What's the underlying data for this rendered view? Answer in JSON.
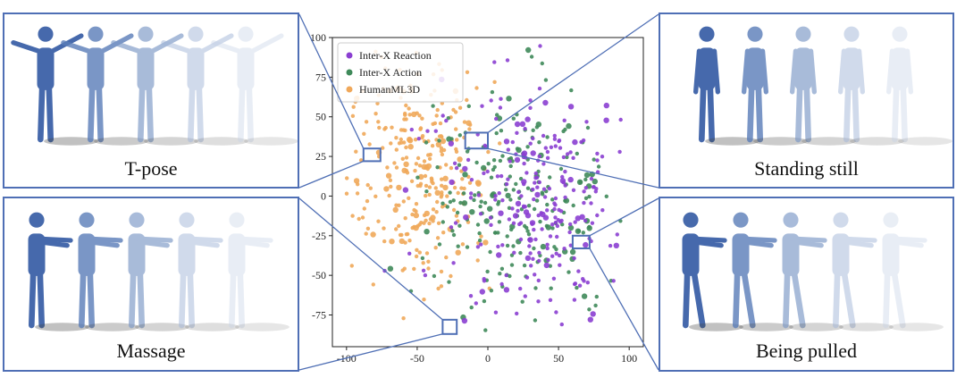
{
  "panels": {
    "tpose": {
      "caption": "T-pose"
    },
    "standing": {
      "caption": "Standing still"
    },
    "massage": {
      "caption": "Massage"
    },
    "pulled": {
      "caption": "Being pulled"
    }
  },
  "chart_data": {
    "type": "scatter",
    "title": "",
    "xlabel": "",
    "ylabel": "",
    "xlim": [
      -110,
      110
    ],
    "ylim": [
      -95,
      100
    ],
    "xticks": [
      -100,
      -50,
      0,
      50,
      100
    ],
    "yticks": [
      -75,
      -50,
      -25,
      0,
      25,
      50,
      75,
      100
    ],
    "grid": false,
    "legend_position": "top-left",
    "series": [
      {
        "name": "Inter-X Reaction",
        "color": "#8b3fd1",
        "center": [
          35,
          -5
        ],
        "spread": [
          32,
          38
        ],
        "count": 260
      },
      {
        "name": "Inter-X Action",
        "color": "#3f8a5a",
        "center": [
          20,
          -10
        ],
        "spread": [
          35,
          40
        ],
        "count": 230
      },
      {
        "name": "HumanML3D",
        "color": "#f0a85a",
        "center": [
          -50,
          15
        ],
        "spread": [
          25,
          35
        ],
        "count": 300
      }
    ],
    "highlight_regions": [
      {
        "label": "T-pose",
        "x": [
          -88,
          -76
        ],
        "y": [
          22,
          30
        ]
      },
      {
        "label": "Standing still",
        "x": [
          -16,
          0
        ],
        "y": [
          30,
          40
        ]
      },
      {
        "label": "Massage",
        "x": [
          -32,
          -22
        ],
        "y": [
          -87,
          -78
        ]
      },
      {
        "label": "Being pulled",
        "x": [
          60,
          72
        ],
        "y": [
          -33,
          -25
        ]
      }
    ]
  }
}
